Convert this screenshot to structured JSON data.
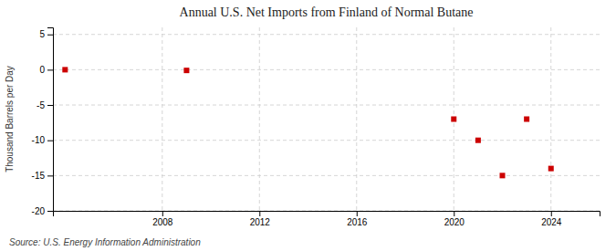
{
  "chart_data": {
    "type": "scatter",
    "title": "Annual U.S. Net Imports from Finland of Normal Butane",
    "ylabel": "Thousand Barrels per Day",
    "source": "Source: U.S. Energy Information Administration",
    "x": [
      2004,
      2009,
      2020,
      2021,
      2022,
      2023,
      2024
    ],
    "values": [
      0.0,
      -0.1,
      -7.0,
      -10.0,
      -15.0,
      -7.0,
      -14.0
    ],
    "color": "#cc0000",
    "marker": "square",
    "xlim": [
      2003.5,
      2026
    ],
    "ylim": [
      -20,
      6
    ],
    "xticks": [
      2008,
      2012,
      2016,
      2020,
      2024
    ],
    "yticks": [
      5,
      0,
      -5,
      -10,
      -15,
      -20
    ],
    "grid": true
  }
}
